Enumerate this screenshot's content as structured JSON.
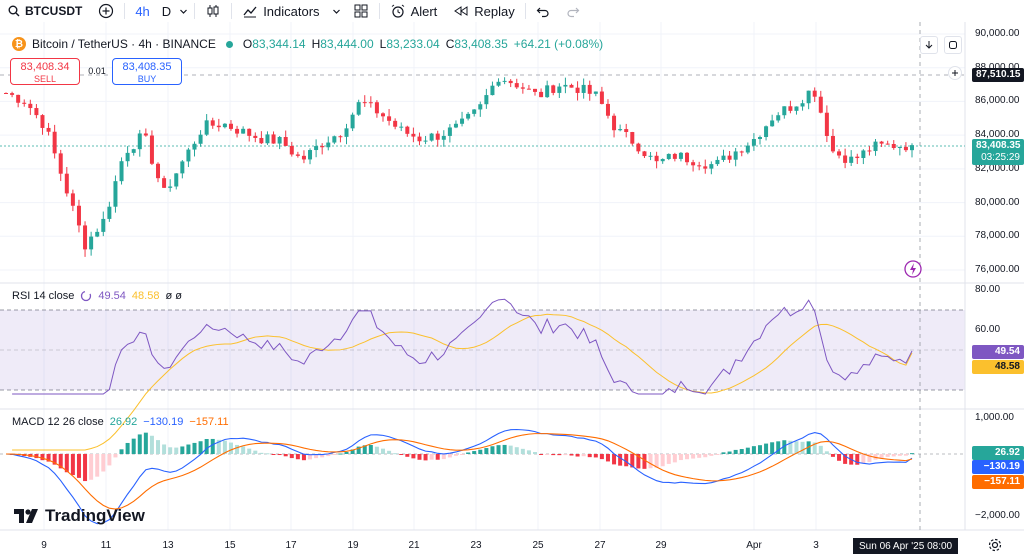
{
  "toolbar": {
    "symbol": "BTCUSDT",
    "timeframes": [
      "4h",
      "D"
    ],
    "indicators_label": "Indicators",
    "alert_label": "Alert",
    "replay_label": "Replay"
  },
  "legend": {
    "title": "Bitcoin / TetherUS · 4h · BINANCE",
    "o_key": "O",
    "o_val": "83,344.14",
    "h_key": "H",
    "h_val": "83,444.00",
    "l_key": "L",
    "l_val": "83,233.04",
    "c_key": "C",
    "c_val": "83,408.35",
    "change": "+64.21 (+0.08%)"
  },
  "trade": {
    "sell_price": "83,408.34",
    "sell_label": "SELL",
    "buy_price": "83,408.35",
    "buy_label": "BUY",
    "spread": "0.01"
  },
  "rsi": {
    "label": "RSI 14 close",
    "value": "49.54",
    "ma_value": "48.58",
    "extra": "ø ø"
  },
  "macd": {
    "label": "MACD 12 26 close",
    "hist": "26.92",
    "macd": "−130.19",
    "signal": "−157.11"
  },
  "badges": {
    "crosshair_price": "87,510.15",
    "last_price": "83,408.35",
    "countdown": "03:25:29",
    "rsi_val": "49.54",
    "rsi_ma": "48.58",
    "macd_hist": "26.92",
    "macd_line": "−130.19",
    "macd_signal": "−157.11"
  },
  "price_axis": [
    "90,000.00",
    "88,000.00",
    "86,000.00",
    "84,000.00",
    "82,000.00",
    "80,000.00",
    "78,000.00",
    "76,000.00"
  ],
  "rsi_axis": [
    "80.00",
    "60.00"
  ],
  "macd_axis": [
    "1,000.00",
    "−2,000.00"
  ],
  "time_axis": [
    "9",
    "11",
    "13",
    "15",
    "17",
    "19",
    "21",
    "23",
    "25",
    "27",
    "29",
    "Apr",
    "3"
  ],
  "crosshair_date": "Sun 06 Apr '25   08:00",
  "brand": "TradingView",
  "colors": {
    "up": "#26a69a",
    "down": "#f23645",
    "rsi": "#7e57c2",
    "rsi_ma": "#fbc02d",
    "macd": "#2962ff",
    "signal": "#ff6d00"
  },
  "chart_data": [
    {
      "type": "candlestick",
      "title": "Bitcoin / TetherUS · 4h · BINANCE",
      "ylim": [
        75500,
        90500
      ],
      "x": [
        "9",
        "11",
        "13",
        "15",
        "17",
        "19",
        "21",
        "23",
        "25",
        "27",
        "29",
        "Apr",
        "3"
      ],
      "close_path": [
        86500,
        86000,
        84500,
        81000,
        77500,
        79000,
        83000,
        84000,
        80500,
        82500,
        84500,
        84700,
        84200,
        83800,
        83600,
        82500,
        83500,
        84200,
        86000,
        85300,
        84300,
        83800,
        84000,
        84500,
        85500,
        87500,
        87000,
        86300,
        87000,
        86800,
        86300,
        84300,
        83500,
        82300,
        82800,
        82500,
        82200,
        83000,
        83800,
        85200,
        85800,
        86800,
        83000,
        82500,
        83300,
        83400,
        83408
      ]
    },
    {
      "type": "line",
      "title": "RSI 14 close",
      "ylim": [
        25,
        85
      ],
      "series": [
        {
          "name": "RSI",
          "values": [
            49.54
          ]
        },
        {
          "name": "RSI MA",
          "values": [
            48.58
          ]
        }
      ]
    },
    {
      "type": "bar",
      "title": "MACD 12 26 close",
      "ylim": [
        -2400,
        1500
      ],
      "series": [
        {
          "name": "Histogram",
          "values": [
            26.92
          ]
        },
        {
          "name": "MACD",
          "values": [
            -130.19
          ]
        },
        {
          "name": "Signal",
          "values": [
            -157.11
          ]
        }
      ]
    }
  ]
}
